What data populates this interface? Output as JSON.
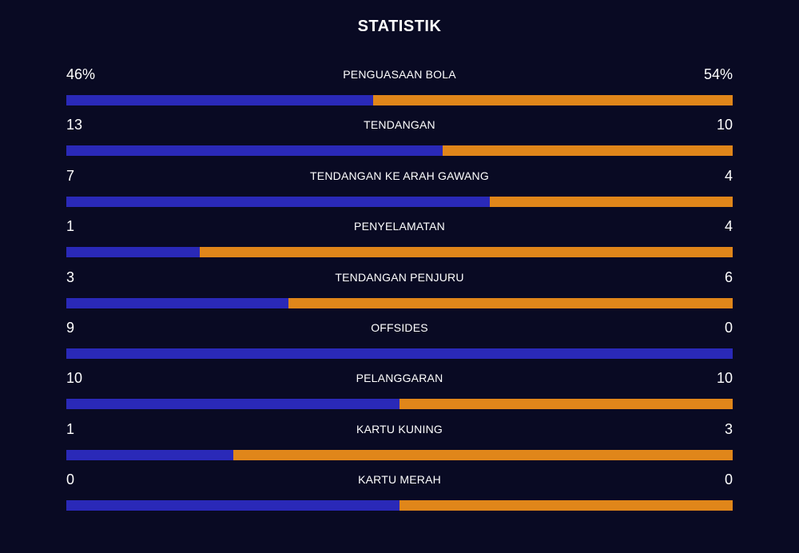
{
  "header": {
    "title": "STATISTIK"
  },
  "colors": {
    "background": "#090a23",
    "home": "#2a29b8",
    "away": "#e0861a"
  },
  "stats": [
    {
      "label": "PENGUASAAN BOLA",
      "home": "46%",
      "away": "54%",
      "home_share": 0.46
    },
    {
      "label": "TENDANGAN",
      "home": "13",
      "away": "10",
      "home_share": 0.565
    },
    {
      "label": "TENDANGAN KE ARAH GAWANG",
      "home": "7",
      "away": "4",
      "home_share": 0.636
    },
    {
      "label": "PENYELAMATAN",
      "home": "1",
      "away": "4",
      "home_share": 0.2
    },
    {
      "label": "TENDANGAN PENJURU",
      "home": "3",
      "away": "6",
      "home_share": 0.333
    },
    {
      "label": "OFFSIDES",
      "home": "9",
      "away": "0",
      "home_share": 1.0
    },
    {
      "label": "PELANGGARAN",
      "home": "10",
      "away": "10",
      "home_share": 0.5
    },
    {
      "label": "KARTU KUNING",
      "home": "1",
      "away": "3",
      "home_share": 0.25
    },
    {
      "label": "KARTU MERAH",
      "home": "0",
      "away": "0",
      "home_share": 0.5
    }
  ]
}
